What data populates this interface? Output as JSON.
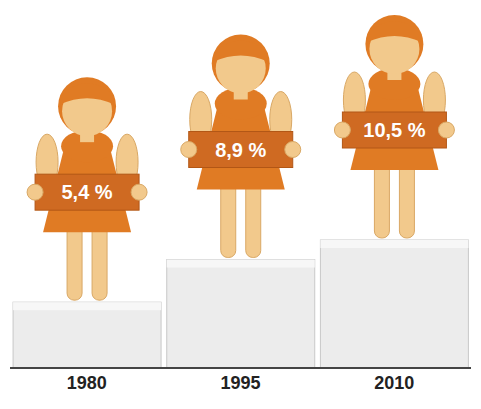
{
  "chart_data": {
    "type": "bar",
    "categories": [
      "1980",
      "1995",
      "2010"
    ],
    "values": [
      5.4,
      8.9,
      10.5
    ],
    "value_labels": [
      "5,4 %",
      "8,9 %",
      "10,5 %"
    ],
    "data_labels": true,
    "tick_labels": "x",
    "color": "#e07b24"
  }
}
